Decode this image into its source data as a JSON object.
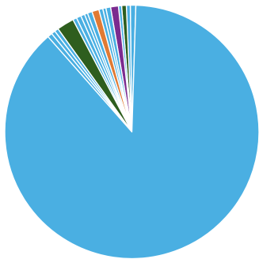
{
  "chart_data": {
    "type": "pie",
    "title": "",
    "start_angle_deg": 1.8,
    "direction": "counterclockwise",
    "slices": [
      {
        "value": 0.7,
        "color": "#4aafe2"
      },
      {
        "value": 0.5,
        "color": "#4aafe2"
      },
      {
        "value": 0.6,
        "color": "#2e5e1e"
      },
      {
        "value": 0.4,
        "color": "#4aafe2"
      },
      {
        "value": 1.0,
        "color": "#7b2b8f"
      },
      {
        "value": 0.6,
        "color": "#4aafe2"
      },
      {
        "value": 0.4,
        "color": "#4aafe2"
      },
      {
        "value": 0.5,
        "color": "#4aafe2"
      },
      {
        "value": 0.9,
        "color": "#e07a33"
      },
      {
        "value": 0.6,
        "color": "#4aafe2"
      },
      {
        "value": 0.4,
        "color": "#4aafe2"
      },
      {
        "value": 0.5,
        "color": "#4aafe2"
      },
      {
        "value": 0.6,
        "color": "#4aafe2"
      },
      {
        "value": 0.5,
        "color": "#4aafe2"
      },
      {
        "value": 2.2,
        "color": "#2e5e1e"
      },
      {
        "value": 0.5,
        "color": "#4aafe2"
      },
      {
        "value": 0.5,
        "color": "#4aafe2"
      },
      {
        "value": 0.6,
        "color": "#4aafe2"
      },
      {
        "value": 88.2,
        "color": "#4aafe2"
      }
    ]
  }
}
